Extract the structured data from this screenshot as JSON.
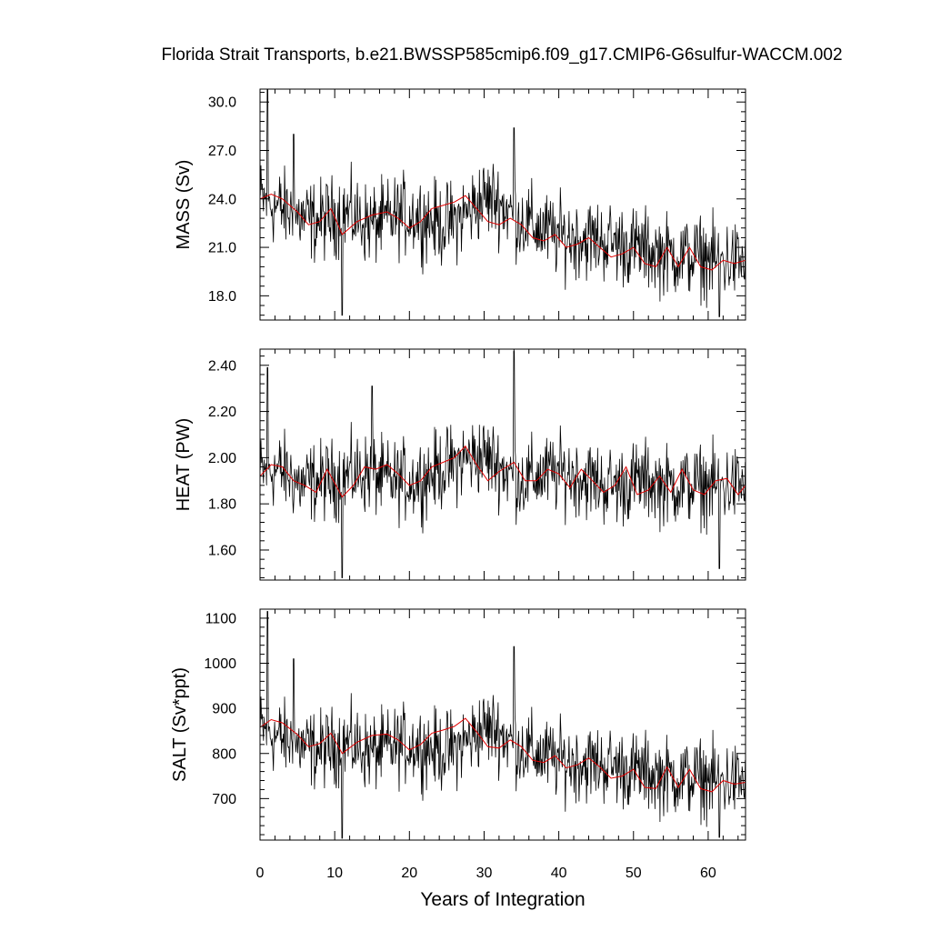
{
  "title": "Florida Strait Transports, b.e21.BWSSP585cmip6.f09_g17.CMIP6-G6sulfur-WACCM.002",
  "chart_data": {
    "type": "line",
    "title": "Florida Strait Transports, b.e21.BWSSP585cmip6.f09_g17.CMIP6-G6sulfur-WACCM.002",
    "xlabel": "Years of Integration",
    "xlim": [
      0,
      65
    ],
    "xticks": [
      "0",
      "10",
      "20",
      "30",
      "40",
      "50",
      "60"
    ],
    "grid": false,
    "series_colors": {
      "monthly": "#000000",
      "smoothed": "#e00000"
    },
    "panels": [
      {
        "ylabel": "MASS (Sv)",
        "ylim": [
          16.5,
          30.8
        ],
        "yticks": [
          "30.0",
          "27.0",
          "24.0",
          "21.0",
          "18.0"
        ],
        "monthly_mean": [
          24.0,
          23.6,
          23.2,
          22.8,
          22.6,
          22.8,
          23.2,
          22.8,
          22.4,
          22.6,
          23.0,
          23.0,
          22.8,
          22.4,
          22.6,
          23.2,
          24.0,
          24.0,
          23.2,
          22.6,
          22.2,
          21.8,
          21.6,
          21.6,
          21.5,
          21.4,
          21.2,
          21.0,
          20.8,
          20.6,
          20.5,
          20.4,
          20.4,
          20.2,
          20.2,
          20.0
        ],
        "monthly_noise": 1.6,
        "spikes": [
          [
            1.0,
            30.8
          ],
          [
            4.5,
            28.0
          ],
          [
            34.0,
            28.4
          ],
          [
            11.0,
            16.8
          ],
          [
            61.5,
            16.7
          ]
        ],
        "smoothed": [
          [
            0,
            24.0
          ],
          [
            1.5,
            24.3
          ],
          [
            3,
            24.0
          ],
          [
            5,
            23.2
          ],
          [
            6.5,
            22.4
          ],
          [
            8,
            22.6
          ],
          [
            9.5,
            23.4
          ],
          [
            11,
            21.8
          ],
          [
            13,
            22.6
          ],
          [
            15,
            23.0
          ],
          [
            17,
            23.2
          ],
          [
            18.5,
            22.8
          ],
          [
            20,
            22.2
          ],
          [
            21.5,
            22.6
          ],
          [
            23,
            23.4
          ],
          [
            24.5,
            23.6
          ],
          [
            26,
            23.8
          ],
          [
            27.5,
            24.2
          ],
          [
            29,
            23.4
          ],
          [
            30.5,
            22.6
          ],
          [
            32,
            22.4
          ],
          [
            33.5,
            22.8
          ],
          [
            35,
            22.4
          ],
          [
            36.5,
            21.6
          ],
          [
            38,
            21.4
          ],
          [
            39.5,
            21.8
          ],
          [
            41,
            21.0
          ],
          [
            42.5,
            21.2
          ],
          [
            44,
            21.6
          ],
          [
            45.5,
            21.0
          ],
          [
            47,
            20.4
          ],
          [
            48.5,
            20.6
          ],
          [
            50,
            21.0
          ],
          [
            51.5,
            20.0
          ],
          [
            53,
            19.8
          ],
          [
            54.5,
            21.0
          ],
          [
            56,
            19.8
          ],
          [
            57.5,
            21.0
          ],
          [
            59,
            19.8
          ],
          [
            60.5,
            19.6
          ],
          [
            62,
            20.2
          ],
          [
            63.5,
            20.0
          ],
          [
            65,
            20.2
          ]
        ]
      },
      {
        "ylabel": "HEAT (PW)",
        "ylim": [
          1.47,
          2.47
        ],
        "yticks": [
          "2.40",
          "2.20",
          "2.00",
          "1.80",
          "1.60"
        ],
        "monthly_mean": [
          1.93,
          1.95,
          1.93,
          1.88,
          1.9,
          1.9,
          1.92,
          1.93,
          1.93,
          1.9,
          1.9,
          1.9,
          1.92,
          1.95,
          1.97,
          2.0,
          2.01,
          1.98,
          1.93,
          1.9,
          1.92,
          1.93,
          1.93,
          1.92,
          1.9,
          1.88,
          1.88,
          1.9,
          1.9,
          1.88,
          1.88,
          1.88,
          1.88,
          1.88,
          1.88,
          1.88
        ],
        "monthly_noise": 0.11,
        "spikes": [
          [
            1.0,
            2.39
          ],
          [
            15.0,
            2.31
          ],
          [
            34.0,
            2.46
          ],
          [
            11.0,
            1.48
          ],
          [
            61.5,
            1.52
          ]
        ],
        "smoothed": [
          [
            0,
            1.92
          ],
          [
            1.5,
            1.97
          ],
          [
            3,
            1.96
          ],
          [
            4.5,
            1.9
          ],
          [
            6,
            1.88
          ],
          [
            7.5,
            1.85
          ],
          [
            9,
            1.95
          ],
          [
            11,
            1.83
          ],
          [
            12.5,
            1.88
          ],
          [
            14,
            1.96
          ],
          [
            15.5,
            1.95
          ],
          [
            17,
            1.97
          ],
          [
            18.5,
            1.93
          ],
          [
            20,
            1.88
          ],
          [
            21.5,
            1.9
          ],
          [
            23,
            1.96
          ],
          [
            24.5,
            1.98
          ],
          [
            26,
            2.0
          ],
          [
            27.5,
            2.05
          ],
          [
            29,
            1.97
          ],
          [
            30.5,
            1.9
          ],
          [
            32,
            1.94
          ],
          [
            34,
            1.98
          ],
          [
            35.5,
            1.9
          ],
          [
            37,
            1.9
          ],
          [
            38.5,
            1.95
          ],
          [
            40,
            1.93
          ],
          [
            41.5,
            1.87
          ],
          [
            43,
            1.95
          ],
          [
            44.5,
            1.9
          ],
          [
            46,
            1.85
          ],
          [
            47.5,
            1.88
          ],
          [
            49,
            1.96
          ],
          [
            50.5,
            1.84
          ],
          [
            52,
            1.86
          ],
          [
            53.5,
            1.92
          ],
          [
            55,
            1.85
          ],
          [
            56.5,
            1.95
          ],
          [
            58,
            1.86
          ],
          [
            59.5,
            1.84
          ],
          [
            61,
            1.9
          ],
          [
            62.5,
            1.91
          ],
          [
            64,
            1.84
          ],
          [
            65,
            1.88
          ]
        ]
      },
      {
        "ylabel": "SALT (Sv*ppt)",
        "ylim": [
          608,
          1120
        ],
        "yticks": [
          "1100",
          "1000",
          "900",
          "800",
          "700"
        ],
        "monthly_mean": [
          855,
          840,
          828,
          815,
          808,
          812,
          825,
          815,
          802,
          808,
          818,
          820,
          815,
          805,
          810,
          830,
          855,
          855,
          828,
          810,
          798,
          788,
          782,
          780,
          778,
          775,
          768,
          762,
          756,
          750,
          748,
          745,
          745,
          740,
          740,
          735
        ],
        "monthly_noise": 55,
        "spikes": [
          [
            1.0,
            1115
          ],
          [
            4.5,
            1010
          ],
          [
            34.0,
            1037
          ],
          [
            11.0,
            612
          ],
          [
            61.5,
            614
          ]
        ],
        "smoothed": [
          [
            0,
            858
          ],
          [
            1.5,
            875
          ],
          [
            3,
            868
          ],
          [
            5,
            842
          ],
          [
            6.5,
            815
          ],
          [
            8,
            822
          ],
          [
            9.5,
            845
          ],
          [
            11,
            800
          ],
          [
            13,
            825
          ],
          [
            15,
            840
          ],
          [
            17,
            843
          ],
          [
            18.5,
            830
          ],
          [
            20,
            808
          ],
          [
            21.5,
            820
          ],
          [
            23,
            845
          ],
          [
            24.5,
            852
          ],
          [
            26,
            860
          ],
          [
            27.5,
            878
          ],
          [
            29,
            848
          ],
          [
            30.5,
            815
          ],
          [
            32,
            812
          ],
          [
            33.5,
            830
          ],
          [
            35,
            815
          ],
          [
            36.5,
            785
          ],
          [
            38,
            780
          ],
          [
            39.5,
            795
          ],
          [
            41,
            768
          ],
          [
            42.5,
            775
          ],
          [
            44,
            790
          ],
          [
            45.5,
            770
          ],
          [
            47,
            745
          ],
          [
            48.5,
            750
          ],
          [
            50,
            765
          ],
          [
            51.5,
            725
          ],
          [
            53,
            722
          ],
          [
            54.5,
            770
          ],
          [
            56,
            725
          ],
          [
            57.5,
            765
          ],
          [
            59,
            722
          ],
          [
            60.5,
            715
          ],
          [
            62,
            740
          ],
          [
            63.5,
            732
          ],
          [
            65,
            736
          ]
        ]
      }
    ]
  }
}
